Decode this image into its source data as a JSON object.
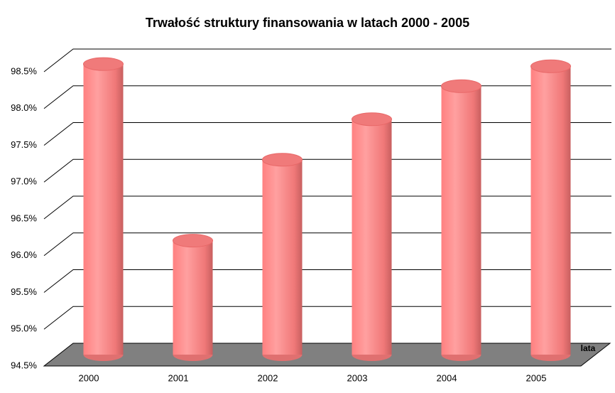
{
  "chart_data": {
    "type": "bar3d-cylinder",
    "title": "Trwałość struktury finansowania w latach 2000 - 2005",
    "x_label": "lata",
    "categories": [
      "2000",
      "2001",
      "2002",
      "2003",
      "2004",
      "2005"
    ],
    "values": [
      98.45,
      96.05,
      97.15,
      97.7,
      98.15,
      98.42
    ],
    "color": "#ff8080",
    "floor_color": "#808080",
    "ylim": [
      94.5,
      98.5
    ],
    "yticks": [
      {
        "value": 94.5,
        "label": "94.5%"
      },
      {
        "value": 95.0,
        "label": "95.0%"
      },
      {
        "value": 95.5,
        "label": "95.5%"
      },
      {
        "value": 96.0,
        "label": "96.0%"
      },
      {
        "value": 96.5,
        "label": "96.5%"
      },
      {
        "value": 97.0,
        "label": "97.0%"
      },
      {
        "value": 97.5,
        "label": "97.5%"
      },
      {
        "value": 98.0,
        "label": "98.0%"
      },
      {
        "value": 98.5,
        "label": "98.5%"
      }
    ],
    "grid": true
  }
}
